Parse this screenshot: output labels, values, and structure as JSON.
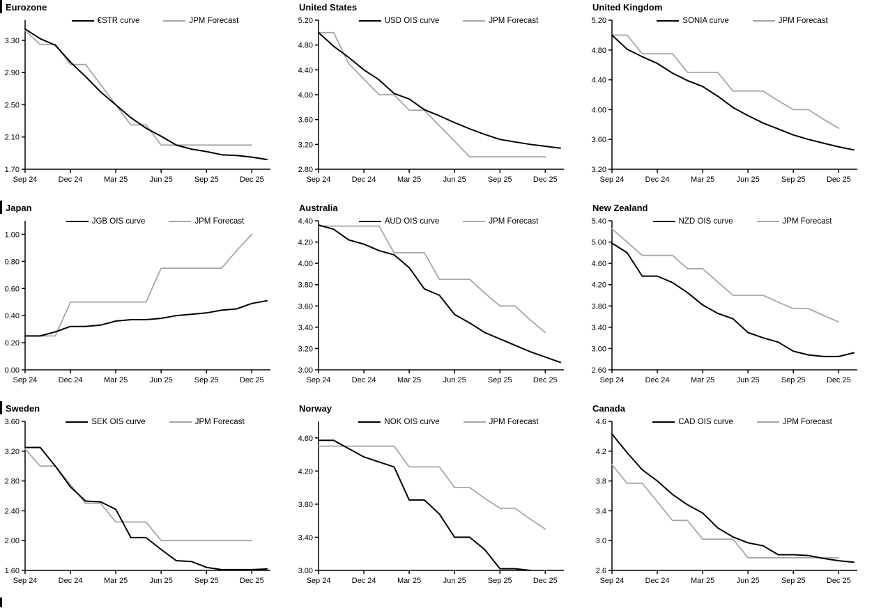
{
  "colors": {
    "background": "#ffffff",
    "axis": "#000000",
    "text": "#000000",
    "series_black": "#000000",
    "series_gray": "#a6a6a6"
  },
  "chart_data": [
    {
      "type": "line",
      "title": "Eurozone",
      "x_tick_labels": [
        "Sep 24",
        "Dec 24",
        "Mar 25",
        "Jun 25",
        "Sep 25",
        "Dec 25"
      ],
      "x_tick_positions": [
        0,
        3,
        6,
        9,
        12,
        15
      ],
      "x_count": 17,
      "ylim": [
        1.7,
        3.55
      ],
      "y_ticks": [
        1.7,
        2.1,
        2.5,
        2.9,
        3.3
      ],
      "y_tick_labels": [
        "1.70",
        "2.10",
        "2.50",
        "2.90",
        "3.30"
      ],
      "grid": false,
      "legend_position": "top-center",
      "series": [
        {
          "name": "€STR curve",
          "color": "black",
          "values": [
            3.44,
            3.32,
            3.24,
            3.03,
            2.85,
            2.66,
            2.5,
            2.34,
            2.21,
            2.11,
            2.0,
            1.95,
            1.92,
            1.88,
            1.87,
            1.85,
            1.82
          ]
        },
        {
          "name": "JPM Forecast",
          "color": "gray",
          "values": [
            3.42,
            3.25,
            3.25,
            3.0,
            3.0,
            2.75,
            2.5,
            2.25,
            2.25,
            2.0,
            2.0,
            2.0,
            2.0,
            2.0,
            2.0,
            2.0,
            null
          ]
        }
      ]
    },
    {
      "type": "line",
      "title": "United States",
      "x_tick_labels": [
        "Sep 24",
        "Dec 24",
        "Mar 25",
        "Jun 25",
        "Sep 25",
        "Dec 25"
      ],
      "x_tick_positions": [
        0,
        3,
        6,
        9,
        12,
        15
      ],
      "x_count": 17,
      "ylim": [
        2.8,
        5.2
      ],
      "y_ticks": [
        2.8,
        3.2,
        3.6,
        4.0,
        4.4,
        4.8,
        5.2
      ],
      "y_tick_labels": [
        "2.80",
        "3.20",
        "3.60",
        "4.00",
        "4.40",
        "4.80",
        "5.20"
      ],
      "grid": false,
      "legend_position": "top-center",
      "series": [
        {
          "name": "USD OIS curve",
          "color": "black",
          "values": [
            5.0,
            4.78,
            4.6,
            4.4,
            4.24,
            4.02,
            3.93,
            3.76,
            3.66,
            3.55,
            3.45,
            3.36,
            3.28,
            3.24,
            3.2,
            3.17,
            3.14
          ]
        },
        {
          "name": "JPM Forecast",
          "color": "gray",
          "values": [
            5.0,
            5.0,
            4.5,
            4.25,
            4.0,
            4.0,
            3.75,
            3.75,
            3.5,
            3.25,
            3.0,
            3.0,
            3.0,
            3.0,
            3.0,
            3.0,
            null
          ]
        }
      ]
    },
    {
      "type": "line",
      "title": "United Kingdom",
      "x_tick_labels": [
        "Sep 24",
        "Dec 24",
        "Mar 25",
        "Jun 25",
        "Sep 25",
        "Dec 25"
      ],
      "x_tick_positions": [
        0,
        3,
        6,
        9,
        12,
        15
      ],
      "x_count": 17,
      "ylim": [
        3.2,
        5.2
      ],
      "y_ticks": [
        3.2,
        3.6,
        4.0,
        4.4,
        4.8,
        5.2
      ],
      "y_tick_labels": [
        "3.20",
        "3.60",
        "4.00",
        "4.40",
        "4.80",
        "5.20"
      ],
      "grid": false,
      "legend_position": "top-center",
      "series": [
        {
          "name": "SONIA curve",
          "color": "black",
          "values": [
            5.0,
            4.81,
            4.71,
            4.62,
            4.49,
            4.39,
            4.31,
            4.18,
            4.03,
            3.92,
            3.82,
            3.74,
            3.66,
            3.6,
            3.55,
            3.5,
            3.46
          ]
        },
        {
          "name": "JPM Forecast",
          "color": "gray",
          "values": [
            5.0,
            5.0,
            4.75,
            4.75,
            4.75,
            4.5,
            4.5,
            4.5,
            4.25,
            4.25,
            4.25,
            4.12,
            4.0,
            4.0,
            3.87,
            3.75,
            null
          ]
        }
      ]
    },
    {
      "type": "line",
      "title": "Japan",
      "x_tick_labels": [
        "Sep 24",
        "Dec 24",
        "Mar 25",
        "Jun 25",
        "Sep 25",
        "Dec 25"
      ],
      "x_tick_positions": [
        0,
        3,
        6,
        9,
        12,
        15
      ],
      "x_count": 17,
      "ylim": [
        0.0,
        1.1
      ],
      "y_ticks": [
        0.0,
        0.2,
        0.4,
        0.6,
        0.8,
        1.0
      ],
      "y_tick_labels": [
        "0.00",
        "0.20",
        "0.40",
        "0.60",
        "0.80",
        "1.00"
      ],
      "grid": false,
      "legend_position": "top-center",
      "series": [
        {
          "name": "JGB OIS curve",
          "color": "black",
          "values": [
            0.25,
            0.25,
            0.28,
            0.32,
            0.32,
            0.33,
            0.36,
            0.37,
            0.37,
            0.38,
            0.4,
            0.41,
            0.42,
            0.44,
            0.45,
            0.49,
            0.51
          ]
        },
        {
          "name": "JPM Forecast",
          "color": "gray",
          "values": [
            0.25,
            0.25,
            0.25,
            0.5,
            0.5,
            0.5,
            0.5,
            0.5,
            0.5,
            0.75,
            0.75,
            0.75,
            0.75,
            0.75,
            0.88,
            1.0,
            null
          ]
        }
      ]
    },
    {
      "type": "line",
      "title": "Australia",
      "x_tick_labels": [
        "Sep 24",
        "Dec 24",
        "Mar 25",
        "Jun 25",
        "Sep 25",
        "Dec 25"
      ],
      "x_tick_positions": [
        0,
        3,
        6,
        9,
        12,
        15
      ],
      "x_count": 17,
      "ylim": [
        3.0,
        4.4
      ],
      "y_ticks": [
        3.0,
        3.2,
        3.4,
        3.6,
        3.8,
        4.0,
        4.2,
        4.4
      ],
      "y_tick_labels": [
        "3.00",
        "3.20",
        "3.40",
        "3.60",
        "3.80",
        "4.00",
        "4.20",
        "4.40"
      ],
      "grid": false,
      "legend_position": "top-center",
      "series": [
        {
          "name": "AUD OIS curve",
          "color": "black",
          "values": [
            4.36,
            4.32,
            4.22,
            4.18,
            4.12,
            4.08,
            3.96,
            3.76,
            3.7,
            3.52,
            3.44,
            3.35,
            3.29,
            3.23,
            3.17,
            3.12,
            3.07
          ]
        },
        {
          "name": "JPM Forecast",
          "color": "gray",
          "values": [
            4.35,
            4.35,
            4.35,
            4.35,
            4.35,
            4.1,
            4.1,
            4.1,
            3.85,
            3.85,
            3.85,
            3.72,
            3.6,
            3.6,
            3.47,
            3.35,
            null
          ]
        }
      ]
    },
    {
      "type": "line",
      "title": "New Zealand",
      "x_tick_labels": [
        "Sep 24",
        "Dec 24",
        "Mar 25",
        "Jun 25",
        "Sep 25",
        "Dec 25"
      ],
      "x_tick_positions": [
        0,
        3,
        6,
        9,
        12,
        15
      ],
      "x_count": 17,
      "ylim": [
        2.6,
        5.4
      ],
      "y_ticks": [
        2.6,
        3.0,
        3.4,
        3.8,
        4.2,
        4.6,
        5.0,
        5.4
      ],
      "y_tick_labels": [
        "2.60",
        "3.00",
        "3.40",
        "3.80",
        "4.20",
        "4.60",
        "5.00",
        "5.40"
      ],
      "grid": false,
      "legend_position": "top-center",
      "series": [
        {
          "name": "NZD OIS curve",
          "color": "black",
          "values": [
            4.98,
            4.8,
            4.36,
            4.36,
            4.24,
            4.05,
            3.82,
            3.66,
            3.56,
            3.3,
            3.2,
            3.12,
            2.95,
            2.88,
            2.85,
            2.85,
            2.92
          ]
        },
        {
          "name": "JPM Forecast",
          "color": "gray",
          "values": [
            5.25,
            5.0,
            4.75,
            4.75,
            4.75,
            4.5,
            4.5,
            4.25,
            4.0,
            4.0,
            4.0,
            3.87,
            3.75,
            3.75,
            3.62,
            3.5,
            null
          ]
        }
      ]
    },
    {
      "type": "line",
      "title": "Sweden",
      "x_tick_labels": [
        "Sep 24",
        "Dec 24",
        "Mar 25",
        "Jun 25",
        "Sep 25",
        "Dec 25"
      ],
      "x_tick_positions": [
        0,
        3,
        6,
        9,
        12,
        15
      ],
      "x_count": 17,
      "ylim": [
        1.6,
        3.6
      ],
      "y_ticks": [
        1.6,
        2.0,
        2.4,
        2.8,
        3.2,
        3.6
      ],
      "y_tick_labels": [
        "1.60",
        "2.00",
        "2.40",
        "2.80",
        "3.20",
        "3.60"
      ],
      "grid": false,
      "legend_position": "top-center",
      "series": [
        {
          "name": "SEK OIS curve",
          "color": "black",
          "values": [
            3.25,
            3.25,
            3.0,
            2.72,
            2.53,
            2.52,
            2.42,
            2.04,
            2.04,
            1.88,
            1.73,
            1.72,
            1.64,
            1.61,
            1.61,
            1.61,
            1.62
          ]
        },
        {
          "name": "JPM Forecast",
          "color": "gray",
          "values": [
            3.23,
            3.0,
            3.0,
            2.75,
            2.5,
            2.5,
            2.25,
            2.25,
            2.25,
            2.0,
            2.0,
            2.0,
            2.0,
            2.0,
            2.0,
            2.0,
            null
          ]
        }
      ]
    },
    {
      "type": "line",
      "title": "Norway",
      "x_tick_labels": [
        "Sep 24",
        "Dec 24",
        "Mar 25",
        "Jun 25",
        "Sep 25",
        "Dec 25"
      ],
      "x_tick_positions": [
        0,
        3,
        6,
        9,
        12,
        15
      ],
      "x_count": 17,
      "ylim": [
        3.0,
        4.8
      ],
      "y_ticks": [
        3.0,
        3.4,
        3.8,
        4.2,
        4.6
      ],
      "y_tick_labels": [
        "3.00",
        "3.40",
        "3.80",
        "4.20",
        "4.60"
      ],
      "grid": false,
      "legend_position": "top-center",
      "series": [
        {
          "name": "NOK OIS curve",
          "color": "black",
          "values": [
            4.57,
            4.57,
            4.47,
            4.37,
            4.31,
            4.25,
            3.85,
            3.85,
            3.68,
            3.4,
            3.4,
            3.25,
            3.02,
            3.02,
            3.0,
            null,
            null
          ]
        },
        {
          "name": "JPM Forecast",
          "color": "gray",
          "values": [
            4.5,
            4.5,
            4.5,
            4.5,
            4.5,
            4.5,
            4.25,
            4.25,
            4.25,
            4.0,
            4.0,
            3.87,
            3.75,
            3.75,
            3.62,
            3.5,
            null
          ]
        }
      ]
    },
    {
      "type": "line",
      "title": "Canada",
      "x_tick_labels": [
        "Sep 24",
        "Dec 24",
        "Mar 25",
        "Jun 25",
        "Sep 25",
        "Dec 25"
      ],
      "x_tick_positions": [
        0,
        3,
        6,
        9,
        12,
        15
      ],
      "x_count": 17,
      "ylim": [
        2.6,
        4.6
      ],
      "y_ticks": [
        2.6,
        3.0,
        3.4,
        3.8,
        4.2,
        4.6
      ],
      "y_tick_labels": [
        "2.6",
        "3.0",
        "3.4",
        "3.8",
        "4.2",
        "4.6"
      ],
      "grid": false,
      "legend_position": "top-center",
      "series": [
        {
          "name": "CAD OIS curve",
          "color": "black",
          "values": [
            4.43,
            4.18,
            3.95,
            3.8,
            3.62,
            3.48,
            3.37,
            3.17,
            3.05,
            2.97,
            2.93,
            2.81,
            2.81,
            2.8,
            2.76,
            2.73,
            2.71
          ]
        },
        {
          "name": "JPM Forecast",
          "color": "gray",
          "values": [
            4.02,
            3.77,
            3.77,
            3.52,
            3.27,
            3.27,
            3.02,
            3.02,
            3.02,
            2.77,
            2.77,
            2.77,
            2.77,
            2.77,
            2.77,
            2.77,
            null
          ]
        }
      ]
    }
  ]
}
